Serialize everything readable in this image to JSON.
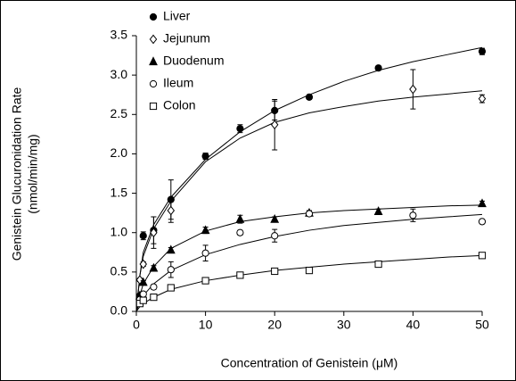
{
  "chart_data": {
    "type": "scatter",
    "x_label": "Concentration of Genistein (μM)",
    "y_label": [
      "Genistein Glucuronidation Rate",
      "(nmol/min/mg)"
    ],
    "xlim": [
      0,
      50
    ],
    "ylim": [
      0,
      3.5
    ],
    "xticks": [
      0,
      10,
      20,
      30,
      40,
      50
    ],
    "yticks": [
      {
        "value": 0,
        "label": "0.0"
      },
      0.5,
      {
        "value": 1,
        "label": "1.0"
      },
      1.5,
      {
        "value": 2,
        "label": "2.0"
      },
      2.5,
      {
        "value": 3,
        "label": "3.0"
      },
      3.5
    ],
    "legend": "top-left",
    "curve_x": [
      0,
      0.5,
      1,
      2.5,
      5,
      10,
      15,
      20,
      25,
      30,
      35,
      40,
      45,
      50
    ],
    "series": [
      {
        "name": "Liver",
        "marker": "filled-circle",
        "color": "#000000",
        "x": [
          0.5,
          1,
          2.5,
          5,
          10,
          15,
          20,
          25,
          35,
          50
        ],
        "values": [
          0.2,
          0.96,
          1.03,
          1.42,
          1.97,
          2.32,
          2.55,
          2.72,
          3.09,
          3.3
        ],
        "errors": [
          0.02,
          0.05,
          0.17,
          0.25,
          0.04,
          0.05,
          0.12,
          0.03,
          0.02,
          0.04
        ],
        "curve": [
          0,
          0.45,
          0.75,
          1.1,
          1.45,
          1.93,
          2.28,
          2.55,
          2.75,
          2.92,
          3.06,
          3.17,
          3.26,
          3.35
        ]
      },
      {
        "name": "Jejunum",
        "marker": "open-diamond",
        "color": "#000000",
        "x": [
          0.5,
          1,
          2.5,
          5,
          20,
          40,
          50
        ],
        "values": [
          0.4,
          0.6,
          1.0,
          1.28,
          2.37,
          2.82,
          2.7
        ],
        "errors": [
          0.02,
          0.03,
          0.2,
          0.15,
          0.32,
          0.25,
          0.05
        ],
        "curve": [
          0,
          0.45,
          0.7,
          1.05,
          1.4,
          1.9,
          2.2,
          2.4,
          2.52,
          2.6,
          2.67,
          2.72,
          2.76,
          2.8
        ]
      },
      {
        "name": "Duodenum",
        "marker": "filled-triangle",
        "color": "#000000",
        "x": [
          0.5,
          1,
          2.5,
          5,
          10,
          15,
          20,
          25,
          35,
          50
        ],
        "values": [
          0.2,
          0.37,
          0.55,
          0.78,
          1.03,
          1.17,
          1.17,
          1.25,
          1.27,
          1.37
        ],
        "errors": [
          0.02,
          0.02,
          0.03,
          0.03,
          0.04,
          0.05,
          0.03,
          0.03,
          0.03,
          0.03
        ],
        "curve": [
          0,
          0.2,
          0.35,
          0.57,
          0.8,
          1.02,
          1.14,
          1.2,
          1.25,
          1.28,
          1.3,
          1.32,
          1.34,
          1.35
        ]
      },
      {
        "name": "Ileum",
        "marker": "open-circle",
        "color": "#000000",
        "x": [
          0.5,
          1,
          2.5,
          5,
          10,
          15,
          20,
          25,
          40,
          50
        ],
        "values": [
          0.15,
          0.22,
          0.31,
          0.53,
          0.74,
          1.0,
          0.96,
          1.24,
          1.22,
          1.14
        ],
        "errors": [
          0.02,
          0.02,
          0.03,
          0.1,
          0.1,
          0.03,
          0.08,
          0.03,
          0.08,
          0.03
        ],
        "curve": [
          0,
          0.12,
          0.2,
          0.35,
          0.52,
          0.72,
          0.85,
          0.95,
          1.03,
          1.09,
          1.13,
          1.17,
          1.2,
          1.23
        ]
      },
      {
        "name": "Colon",
        "marker": "open-square",
        "color": "#000000",
        "x": [
          0.5,
          1,
          2.5,
          5,
          10,
          15,
          20,
          25,
          35,
          50
        ],
        "values": [
          0.1,
          0.14,
          0.18,
          0.3,
          0.39,
          0.46,
          0.51,
          0.52,
          0.6,
          0.71
        ],
        "errors": [
          0.01,
          0.01,
          0.02,
          0.02,
          0.02,
          0.02,
          0.02,
          0.03,
          0.02,
          0.03
        ],
        "curve": [
          0,
          0.06,
          0.1,
          0.18,
          0.28,
          0.39,
          0.46,
          0.52,
          0.56,
          0.6,
          0.63,
          0.66,
          0.69,
          0.71
        ]
      }
    ]
  }
}
